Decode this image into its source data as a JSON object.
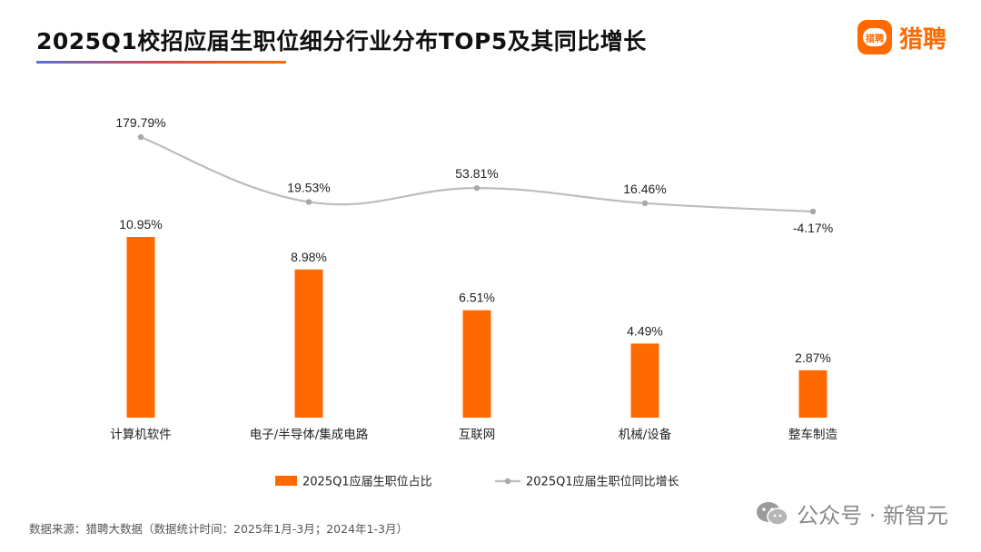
{
  "header": {
    "title": "2025Q1校招应届生职位细分行业分布TOP5及其同比增长",
    "brand_name": "猎聘",
    "brand_logo_text": "猎聘"
  },
  "footer": {
    "source": "数据来源：猎聘大数据（数据统计时间：2025年1月-3月；2024年1-3月）",
    "watermark": "公众号 · 新智元"
  },
  "colors": {
    "bar": "#ff6a00",
    "line": "#bdbdbd",
    "brand": "#ff6a00"
  },
  "icons": {
    "brand": "liepin-logo-icon",
    "watermark": "wechat-icon"
  },
  "chart_data": {
    "type": "bar",
    "categories": [
      "计算机软件",
      "电子/半导体/集成电路",
      "互联网",
      "机械/设备",
      "整车制造"
    ],
    "series": [
      {
        "name": "2025Q1应届生职位占比",
        "type": "bar",
        "values": [
          10.95,
          8.98,
          6.51,
          4.49,
          2.87
        ],
        "labels": [
          "10.95%",
          "8.98%",
          "6.51%",
          "4.49%",
          "2.87%"
        ]
      },
      {
        "name": "2025Q1应届生职位同比增长",
        "type": "line",
        "values": [
          179.79,
          19.53,
          53.81,
          16.46,
          -4.17
        ],
        "labels": [
          "179.79%",
          "19.53%",
          "53.81%",
          "16.46%",
          "-4.17%"
        ]
      }
    ],
    "legend": "bottom-center",
    "grid": false
  }
}
